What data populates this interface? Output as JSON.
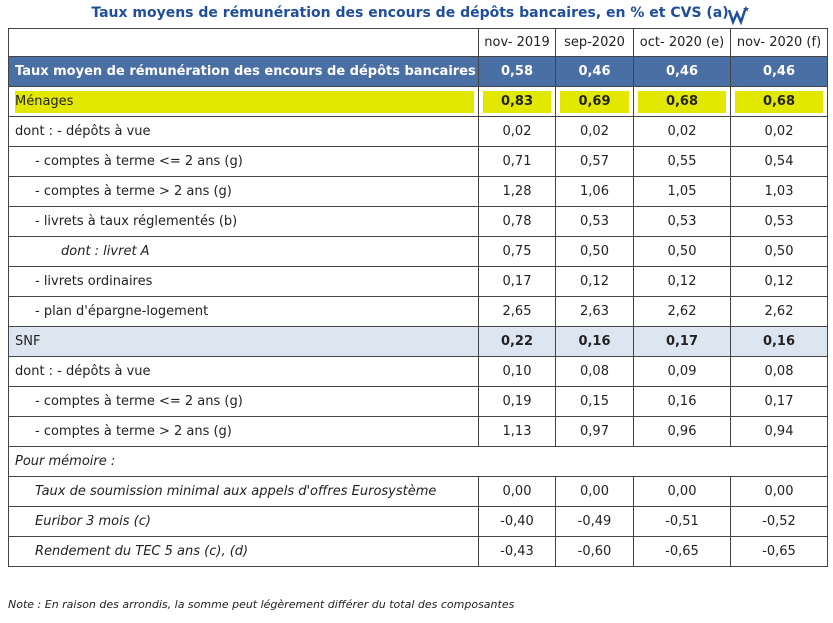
{
  "title": "Taux moyens de rémunération des encours de dépôts bancaires, en % et CVS (a)",
  "table": {
    "columns": [
      "nov- 2019",
      "sep-2020",
      "oct- 2020 (e)",
      "nov- 2020 (f)"
    ],
    "rows": [
      {
        "label": "Taux moyen de rémunération des encours de dépôts bancaires",
        "values": [
          "0,58",
          "0,46",
          "0,46",
          "0,46"
        ]
      },
      {
        "label": "Ménages",
        "values": [
          "0,83",
          "0,69",
          "0,68",
          "0,68"
        ]
      },
      {
        "label": "dont : - dépôts à vue",
        "values": [
          "0,02",
          "0,02",
          "0,02",
          "0,02"
        ]
      },
      {
        "label": "- comptes à terme <= 2 ans (g)",
        "values": [
          "0,71",
          "0,57",
          "0,55",
          "0,54"
        ]
      },
      {
        "label": "- comptes à terme > 2 ans (g)",
        "values": [
          "1,28",
          "1,06",
          "1,05",
          "1,03"
        ]
      },
      {
        "label": "- livrets à taux réglementés (b)",
        "values": [
          "0,78",
          "0,53",
          "0,53",
          "0,53"
        ]
      },
      {
        "label": "dont : livret A",
        "values": [
          "0,75",
          "0,50",
          "0,50",
          "0,50"
        ]
      },
      {
        "label": "- livrets ordinaires",
        "values": [
          "0,17",
          "0,12",
          "0,12",
          "0,12"
        ]
      },
      {
        "label": "- plan d'épargne-logement",
        "values": [
          "2,65",
          "2,63",
          "2,62",
          "2,62"
        ]
      },
      {
        "label": "SNF",
        "values": [
          "0,22",
          "0,16",
          "0,17",
          "0,16"
        ]
      },
      {
        "label": "dont : - dépôts à vue",
        "values": [
          "0,10",
          "0,08",
          "0,09",
          "0,08"
        ]
      },
      {
        "label": "- comptes à terme <= 2 ans (g)",
        "values": [
          "0,19",
          "0,15",
          "0,16",
          "0,17"
        ]
      },
      {
        "label": "- comptes à terme > 2 ans (g)",
        "values": [
          "1,13",
          "0,97",
          "0,96",
          "0,94"
        ]
      }
    ],
    "memo_title": "Pour mémoire :",
    "memo_rows": [
      {
        "label": "Taux de soumission minimal aux appels d'offres Eurosystème",
        "values": [
          "0,00",
          "0,00",
          "0,00",
          "0,00"
        ]
      },
      {
        "label": "Euribor 3 mois (c)",
        "values": [
          "-0,40",
          "-0,49",
          "-0,51",
          "-0,52"
        ]
      },
      {
        "label": "Rendement du TEC 5 ans (c), (d)",
        "values": [
          "-0,43",
          "-0,60",
          "-0,65",
          "-0,65"
        ]
      }
    ]
  },
  "note": "Note : En raison des arrondis, la somme peut légèrement différer du total des composantes"
}
